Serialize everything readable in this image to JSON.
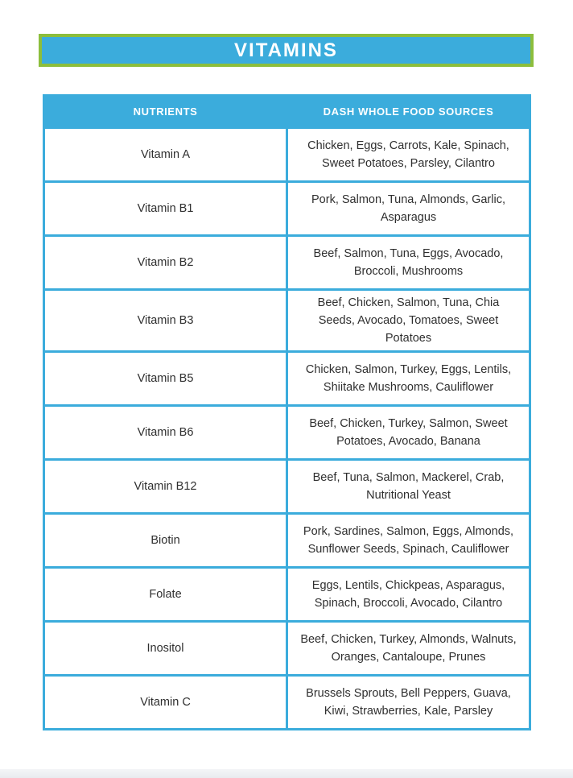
{
  "title": "VITAMINS",
  "colors": {
    "accent_blue": "#3bacdc",
    "accent_green": "#8cbe3c",
    "body_text": "#2f2f2f",
    "header_text": "#ffffff"
  },
  "table": {
    "headers": [
      "NUTRIENTS",
      "DASH WHOLE FOOD SOURCES"
    ],
    "rows": [
      {
        "nutrient": "Vitamin A",
        "sources": "Chicken, Eggs, Carrots, Kale, Spinach, Sweet Potatoes, Parsley, Cilantro"
      },
      {
        "nutrient": "Vitamin B1",
        "sources": "Pork, Salmon, Tuna, Almonds, Garlic, Asparagus"
      },
      {
        "nutrient": "Vitamin B2",
        "sources": "Beef, Salmon, Tuna, Eggs, Avocado, Broccoli, Mushrooms"
      },
      {
        "nutrient": "Vitamin B3",
        "sources": "Beef, Chicken, Salmon, Tuna, Chia Seeds, Avocado, Tomatoes, Sweet Potatoes"
      },
      {
        "nutrient": "Vitamin B5",
        "sources": "Chicken, Salmon, Turkey, Eggs, Lentils, Shiitake Mushrooms, Cauliflower"
      },
      {
        "nutrient": "Vitamin B6",
        "sources": "Beef, Chicken, Turkey, Salmon, Sweet Potatoes, Avocado, Banana"
      },
      {
        "nutrient": "Vitamin B12",
        "sources": "Beef, Tuna, Salmon, Mackerel, Crab, Nutritional Yeast"
      },
      {
        "nutrient": "Biotin",
        "sources": "Pork, Sardines, Salmon, Eggs, Almonds, Sunflower Seeds, Spinach, Cauliflower"
      },
      {
        "nutrient": "Folate",
        "sources": "Eggs, Lentils, Chickpeas, Asparagus, Spinach, Broccoli, Avocado, Cilantro"
      },
      {
        "nutrient": "Inositol",
        "sources": "Beef, Chicken, Turkey, Almonds, Walnuts, Oranges, Cantaloupe, Prunes"
      },
      {
        "nutrient": "Vitamin C",
        "sources": "Brussels Sprouts, Bell Peppers, Guava, Kiwi, Strawberries, Kale, Parsley"
      }
    ]
  }
}
